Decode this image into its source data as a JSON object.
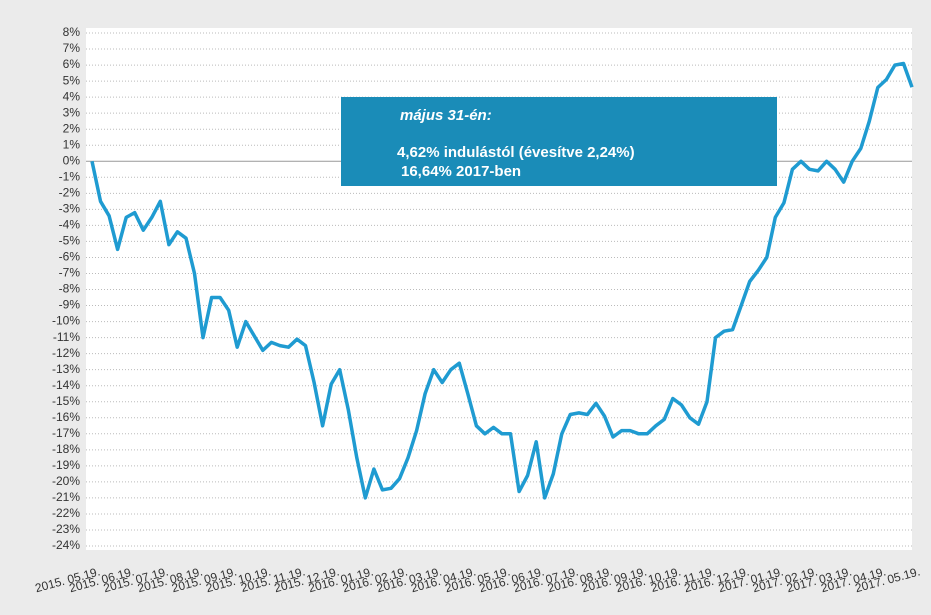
{
  "chart_data": {
    "type": "line",
    "categories": [
      "2015. 05.19.",
      null,
      null,
      null,
      "2015. 06.19.",
      null,
      null,
      null,
      "2015. 07.19.",
      null,
      null,
      null,
      "2015. 08.19.",
      null,
      null,
      null,
      "2015. 09.19.",
      null,
      null,
      null,
      "2015. 10.19.",
      null,
      null,
      null,
      "2015. 11.19.",
      null,
      null,
      null,
      "2015. 12.19.",
      null,
      null,
      null,
      "2016. 01.19.",
      null,
      null,
      null,
      "2016. 02.19.",
      null,
      null,
      null,
      "2016. 03.19.",
      null,
      null,
      null,
      "2016. 04.19.",
      null,
      null,
      null,
      "2016. 05.19.",
      null,
      null,
      null,
      "2016. 06.19.",
      null,
      null,
      null,
      "2016. 07.19.",
      null,
      null,
      null,
      "2016. 08.19.",
      null,
      null,
      null,
      "2016. 09.19.",
      null,
      null,
      null,
      "2016. 10.19.",
      null,
      null,
      null,
      "2016. 11.19.",
      null,
      null,
      null,
      "2016. 12.19.",
      null,
      null,
      null,
      "2017. 01.19.",
      null,
      null,
      null,
      "2017. 02.19.",
      null,
      null,
      null,
      "2017. 03.19.",
      null,
      null,
      null,
      "2017. 04.19.",
      null,
      null,
      null,
      "2017. 05.19."
    ],
    "series": [
      {
        "name": null,
        "color": "#1f9bd1",
        "values": [
          0,
          -2.5,
          -3.4,
          -5.5,
          -3.5,
          -3.2,
          -4.3,
          -3.5,
          -2.5,
          -5.2,
          -4.4,
          -4.8,
          -7,
          -11,
          -8.5,
          -8.5,
          -9.3,
          -11.6,
          -10,
          -10.9,
          -11.8,
          -11.3,
          -11.5,
          -11.6,
          -11.1,
          -11.5,
          -13.8,
          -16.5,
          -13.9,
          -13,
          -15.5,
          -18.5,
          -21,
          -19.2,
          -20.5,
          -20.4,
          -19.8,
          -18.5,
          -16.8,
          -14.5,
          -13,
          -13.8,
          -13,
          -12.6,
          -14.5,
          -16.5,
          -17,
          -16.6,
          -17,
          -17,
          -20.6,
          -19.6,
          -17.5,
          -21,
          -19.5,
          -17,
          -15.8,
          -15.7,
          -15.8,
          -15.1,
          -15.9,
          -17.2,
          -16.8,
          -16.8,
          -17,
          -17,
          -16.5,
          -16.1,
          -14.8,
          -15.2,
          -16,
          -16.4,
          -15,
          -11,
          -10.6,
          -10.5,
          -9,
          -7.5,
          -6.8,
          -6,
          -3.5,
          -2.6,
          -0.5,
          0,
          -0.5,
          -0.6,
          0,
          -0.5,
          -1.3,
          0,
          0.8,
          2.5,
          4.6,
          5.1,
          6,
          6.1,
          4.62
        ]
      }
    ],
    "ylim": [
      -24,
      8
    ],
    "yticks": [
      {
        "value": 8,
        "label": "8%"
      },
      {
        "value": 7,
        "label": "7%"
      },
      {
        "value": 6,
        "label": "6%"
      },
      {
        "value": 5,
        "label": "5%"
      },
      {
        "value": 4,
        "label": "4%"
      },
      {
        "value": 3,
        "label": "3%"
      },
      {
        "value": 2,
        "label": "2%"
      },
      {
        "value": 1,
        "label": "1%"
      },
      {
        "value": 0,
        "label": "0%"
      },
      {
        "value": -1,
        "label": "-1%"
      },
      {
        "value": -2,
        "label": "-2%"
      },
      {
        "value": -3,
        "label": "-3%"
      },
      {
        "value": -4,
        "label": "-4%"
      },
      {
        "value": -5,
        "label": "-5%"
      },
      {
        "value": -6,
        "label": "-6%"
      },
      {
        "value": -7,
        "label": "-7%"
      },
      {
        "value": -8,
        "label": "-8%"
      },
      {
        "value": -9,
        "label": "-9%"
      },
      {
        "value": -10,
        "label": "-10%"
      },
      {
        "value": -11,
        "label": "-11%"
      },
      {
        "value": -12,
        "label": "-12%"
      },
      {
        "value": -13,
        "label": "-13%"
      },
      {
        "value": -14,
        "label": "-14%"
      },
      {
        "value": -15,
        "label": "-15%"
      },
      {
        "value": -16,
        "label": "-16%"
      },
      {
        "value": -17,
        "label": "-17%"
      },
      {
        "value": -18,
        "label": "-18%"
      },
      {
        "value": -19,
        "label": "-19%"
      },
      {
        "value": -20,
        "label": "-20%"
      },
      {
        "value": -21,
        "label": "-21%"
      },
      {
        "value": -22,
        "label": "-22%"
      },
      {
        "value": -23,
        "label": "-23%"
      },
      {
        "value": -24,
        "label": "-24%"
      }
    ],
    "grid": true,
    "annotation": {
      "heading": "május 31-én:",
      "lines": [
        "4,62% indulástól (évesítve 2,24%)",
        "16,64% 2017-ben"
      ]
    }
  }
}
